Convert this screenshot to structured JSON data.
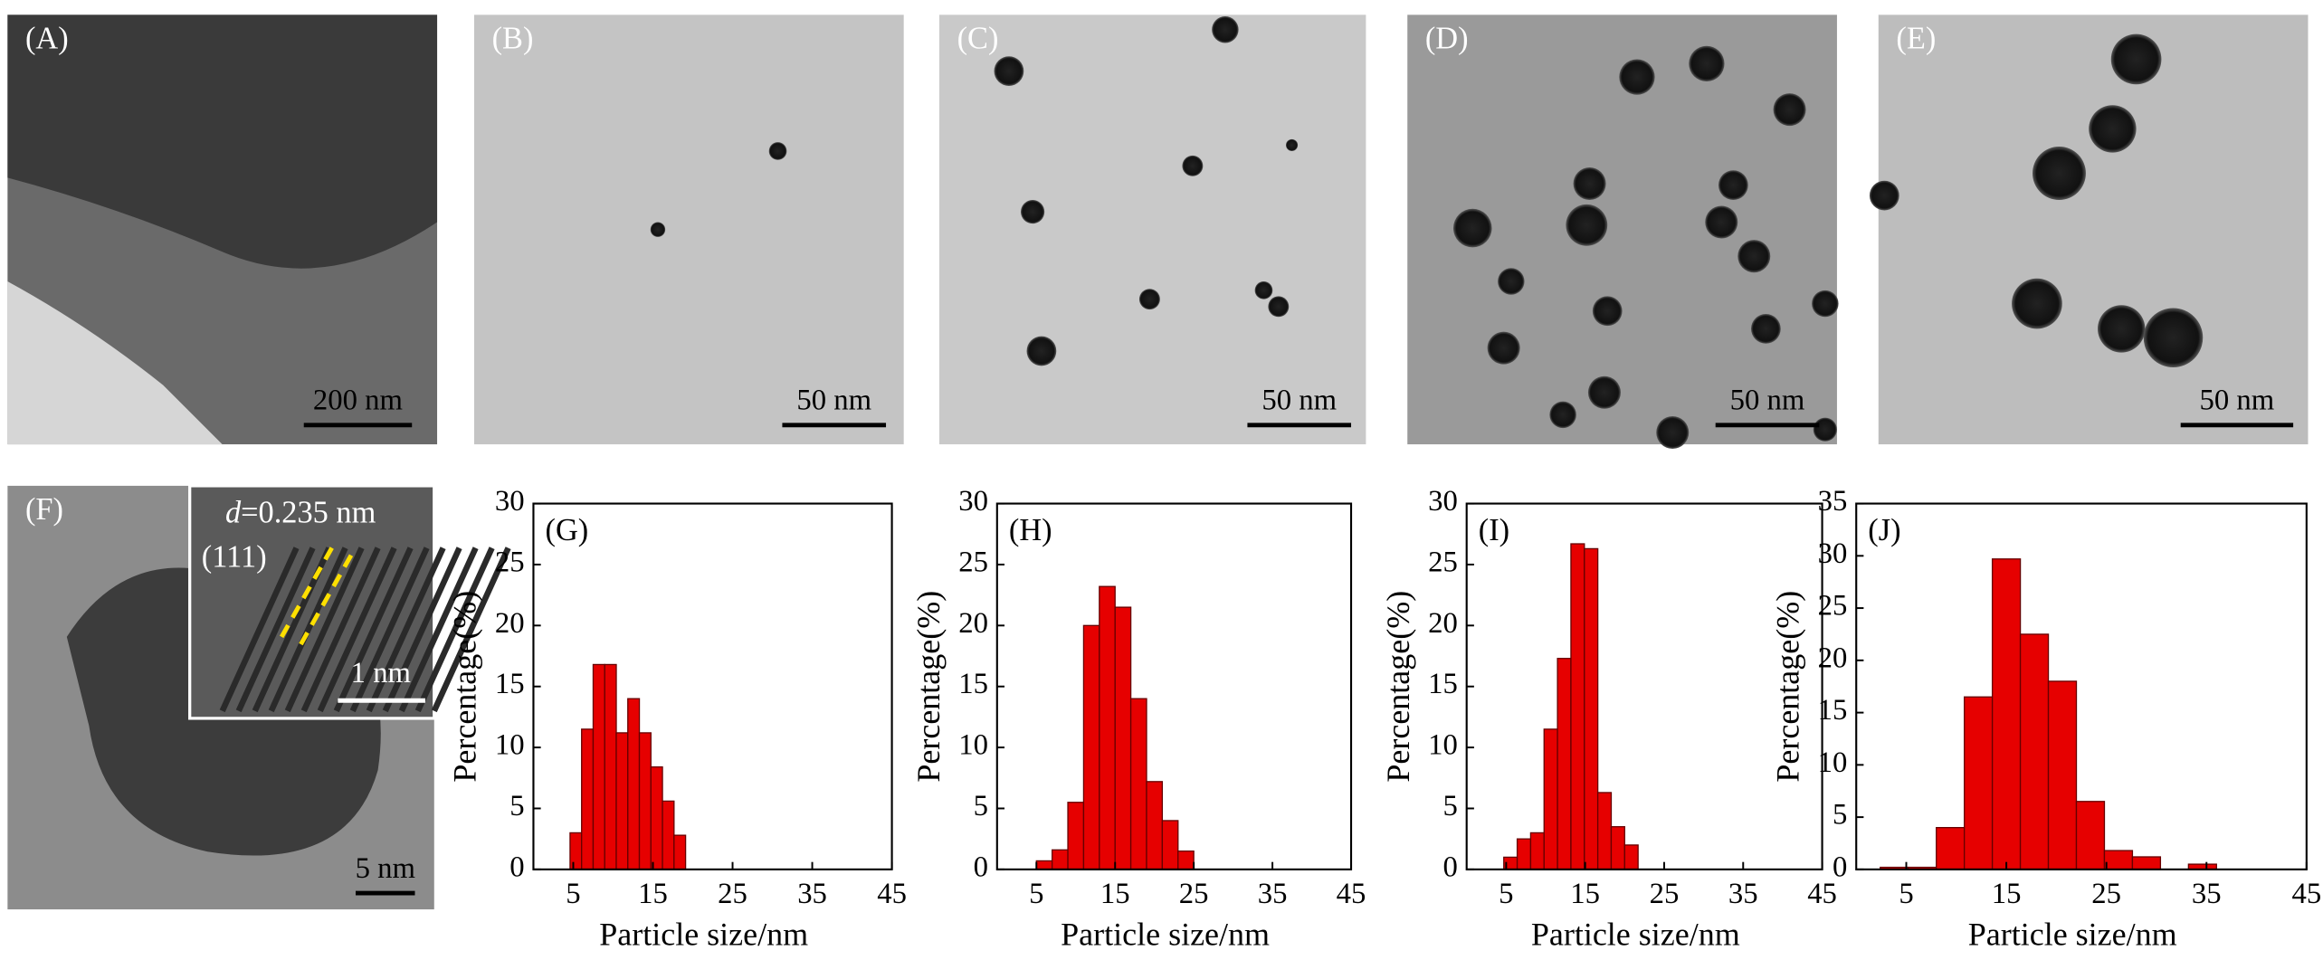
{
  "panels": [
    {
      "label": "(A)",
      "scale_bar": "200 nm"
    },
    {
      "label": "(B)",
      "scale_bar": "50 nm"
    },
    {
      "label": "(C)",
      "scale_bar": "50 nm"
    },
    {
      "label": "(D)",
      "scale_bar": "50 nm"
    },
    {
      "label": "(E)",
      "scale_bar": "50 nm"
    },
    {
      "label": "(F)",
      "scale_bar": "5 nm"
    }
  ],
  "inset": {
    "variable": "d",
    "spacing": "=0.235 nm",
    "plane": "(111)",
    "scale_bar": "1 nm"
  },
  "chart_data": [
    {
      "type": "histogram",
      "label": "(G)",
      "x_label": "Particle size/nm",
      "y_label": "Percentage(%)",
      "color": "#e60000",
      "bins": [
        4.6,
        6.05,
        7.5,
        8.95,
        10.4,
        11.85,
        13.3,
        14.75,
        16.2,
        17.65,
        19.1
      ],
      "values": [
        3,
        11.5,
        16.8,
        16.8,
        11.2,
        14,
        11.2,
        8.4,
        5.6,
        2.8
      ],
      "xlim": [
        0,
        45
      ],
      "xticks": [
        5,
        15,
        25,
        35,
        45
      ],
      "ylim": [
        0,
        30
      ],
      "yticks": [
        0,
        5,
        10,
        15,
        20,
        25,
        30
      ]
    },
    {
      "type": "histogram",
      "label": "(H)",
      "x_label": "Particle size/nm",
      "y_label": "Percentage(%)",
      "color": "#e60000",
      "bins": [
        5,
        7,
        9,
        11,
        13,
        15,
        17,
        19,
        21,
        23,
        25
      ],
      "values": [
        0.7,
        1.6,
        5.5,
        20,
        23.2,
        21.5,
        14,
        7.2,
        4,
        1.5
      ],
      "xlim": [
        0,
        45
      ],
      "xticks": [
        5,
        15,
        25,
        35,
        45
      ],
      "ylim": [
        0,
        30
      ],
      "yticks": [
        0,
        5,
        10,
        15,
        20,
        25,
        30
      ]
    },
    {
      "type": "histogram",
      "label": "(I)",
      "x_label": "Particle size/nm",
      "y_label": "Percentage(%)",
      "color": "#e60000",
      "bins": [
        4.7,
        6.4,
        8.1,
        9.8,
        11.5,
        13.2,
        14.9,
        16.6,
        18.3,
        20,
        21.7
      ],
      "values": [
        1,
        2.5,
        3,
        11.5,
        17.3,
        26.7,
        26.3,
        6.3,
        3.5,
        2
      ],
      "xlim": [
        0,
        45
      ],
      "xticks": [
        5,
        15,
        25,
        35,
        45
      ],
      "ylim": [
        0,
        30
      ],
      "yticks": [
        0,
        5,
        10,
        15,
        20,
        25,
        30
      ]
    },
    {
      "type": "histogram",
      "label": "(J)",
      "x_label": "Particle size/nm",
      "y_label": "Percentage(%)",
      "color": "#e60000",
      "bins": [
        2.4,
        5.2,
        8,
        10.8,
        13.6,
        16.4,
        19.2,
        22,
        24.8,
        27.6,
        30.4,
        33.2,
        36
      ],
      "values": [
        0.2,
        0.2,
        4,
        16.5,
        29.7,
        22.5,
        18,
        6.5,
        1.8,
        1.2,
        0,
        0.5
      ],
      "xlim": [
        0,
        45
      ],
      "xticks": [
        5,
        15,
        25,
        35,
        45
      ],
      "ylim": [
        0,
        35
      ],
      "yticks": [
        0,
        5,
        10,
        15,
        20,
        25,
        30,
        35
      ]
    }
  ]
}
